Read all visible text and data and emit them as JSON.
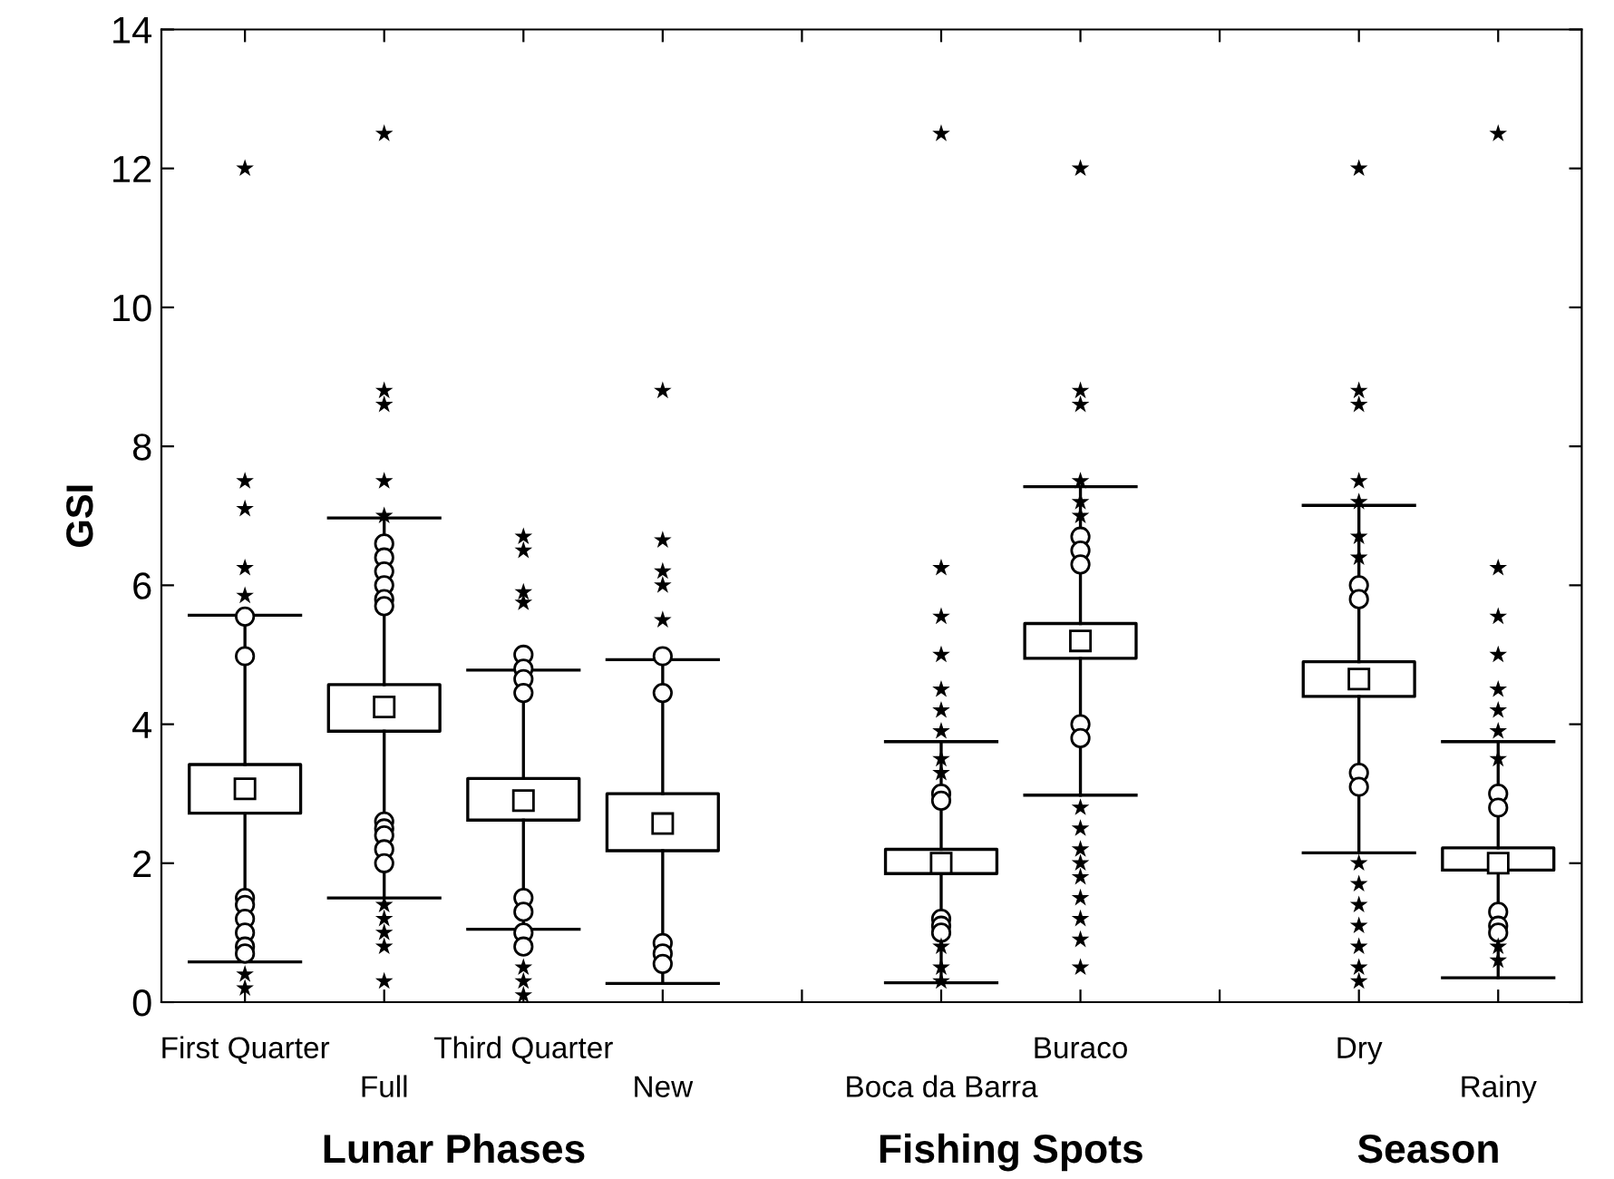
{
  "chart_data": {
    "type": "box",
    "ylabel": "GSI",
    "ylim": [
      0,
      14
    ],
    "yticks": [
      0,
      2,
      4,
      6,
      8,
      10,
      12,
      14
    ],
    "grid": false,
    "legend": false,
    "categories": [
      "First Quarter",
      "Full",
      "Third Quarter",
      "New",
      null,
      "Boca da Barra",
      "Buraco",
      null,
      "Dry",
      "Rainy"
    ],
    "boxes": [
      {
        "low": 0.58,
        "q1": 2.72,
        "median": 3.07,
        "q3": 3.42,
        "high": 5.57,
        "outliers": [
          5.55,
          4.98,
          1.5,
          1.4,
          1.2,
          1.0,
          0.8,
          0.7
        ]
      },
      {
        "low": 1.5,
        "q1": 3.9,
        "median": 4.25,
        "q3": 4.57,
        "high": 6.97,
        "outliers": [
          6.6,
          6.4,
          6.2,
          6.0,
          5.8,
          5.7,
          2.6,
          2.5,
          2.4,
          2.2,
          2.0
        ]
      },
      {
        "low": 1.05,
        "q1": 2.62,
        "median": 2.9,
        "q3": 3.22,
        "high": 4.78,
        "outliers": [
          5.0,
          4.8,
          4.65,
          4.45,
          1.5,
          1.3,
          1.0,
          0.8
        ]
      },
      {
        "low": 0.27,
        "q1": 2.18,
        "median": 2.57,
        "q3": 3.0,
        "high": 4.93,
        "outliers": [
          4.98,
          4.45,
          0.85,
          0.7,
          0.55
        ]
      },
      null,
      {
        "low": 0.28,
        "q1": 1.85,
        "median": 2.0,
        "q3": 2.2,
        "high": 3.75,
        "outliers": [
          3.0,
          2.9,
          1.2,
          1.1,
          1.0
        ]
      },
      {
        "low": 2.98,
        "q1": 4.95,
        "median": 5.2,
        "q3": 5.45,
        "high": 7.42,
        "outliers": [
          6.7,
          6.5,
          6.3,
          4.0,
          3.8
        ]
      },
      null,
      {
        "low": 2.15,
        "q1": 4.4,
        "median": 4.65,
        "q3": 4.9,
        "high": 7.15,
        "outliers": [
          6.0,
          5.8,
          3.3,
          3.1
        ]
      },
      {
        "low": 0.35,
        "q1": 1.9,
        "median": 2.0,
        "q3": 2.22,
        "high": 3.75,
        "outliers": [
          3.0,
          2.8,
          1.3,
          1.1,
          1.0
        ]
      }
    ],
    "series": [
      {
        "type": "scatter",
        "marker": "star",
        "color": "#000000",
        "x": [
          "First Quarter",
          "First Quarter",
          "First Quarter",
          "First Quarter",
          "First Quarter",
          "First Quarter",
          "First Quarter",
          "Full",
          "Full",
          "Full",
          "Full",
          "Full",
          "Full",
          "Full",
          "Full",
          "Full",
          "Full",
          "Third Quarter",
          "Third Quarter",
          "Third Quarter",
          "Third Quarter",
          "Third Quarter",
          "Third Quarter",
          "Third Quarter",
          "New",
          "New",
          "New",
          "New",
          "New",
          "Boca da Barra",
          "Boca da Barra",
          "Boca da Barra",
          "Boca da Barra",
          "Boca da Barra",
          "Boca da Barra",
          "Boca da Barra",
          "Boca da Barra",
          "Boca da Barra",
          "Boca da Barra",
          "Boca da Barra",
          "Boca da Barra",
          "Buraco",
          "Buraco",
          "Buraco",
          "Buraco",
          "Buraco",
          "Buraco",
          "Buraco",
          "Buraco",
          "Buraco",
          "Buraco",
          "Buraco",
          "Buraco",
          "Buraco",
          "Buraco",
          "Buraco",
          "Dry",
          "Dry",
          "Dry",
          "Dry",
          "Dry",
          "Dry",
          "Dry",
          "Dry",
          "Dry",
          "Dry",
          "Dry",
          "Dry",
          "Dry",
          "Dry",
          "Rainy",
          "Rainy",
          "Rainy",
          "Rainy",
          "Rainy",
          "Rainy",
          "Rainy",
          "Rainy",
          "Rainy",
          "Rainy"
        ],
        "values": [
          12.0,
          7.5,
          7.1,
          6.25,
          5.85,
          0.4,
          0.2,
          12.5,
          8.8,
          8.6,
          7.5,
          7.0,
          1.4,
          1.2,
          1.0,
          0.8,
          0.3,
          6.7,
          6.5,
          5.9,
          5.75,
          0.5,
          0.3,
          0.1,
          8.8,
          6.65,
          6.2,
          6.0,
          5.5,
          12.5,
          6.25,
          5.55,
          5.0,
          4.5,
          4.2,
          3.9,
          3.5,
          3.3,
          0.8,
          0.5,
          0.3,
          12.0,
          8.8,
          8.6,
          7.5,
          7.2,
          7.0,
          2.8,
          2.5,
          2.2,
          2.0,
          1.8,
          1.5,
          1.2,
          0.9,
          0.5,
          12.0,
          8.8,
          8.6,
          7.5,
          7.2,
          6.7,
          6.4,
          2.0,
          1.7,
          1.4,
          1.1,
          0.8,
          0.5,
          0.3,
          12.5,
          6.25,
          5.55,
          5.0,
          4.5,
          4.2,
          3.9,
          3.5,
          0.8,
          0.6
        ]
      }
    ],
    "annotations": [
      "Lunar Phases",
      "Fishing Spots",
      "Season"
    ]
  }
}
